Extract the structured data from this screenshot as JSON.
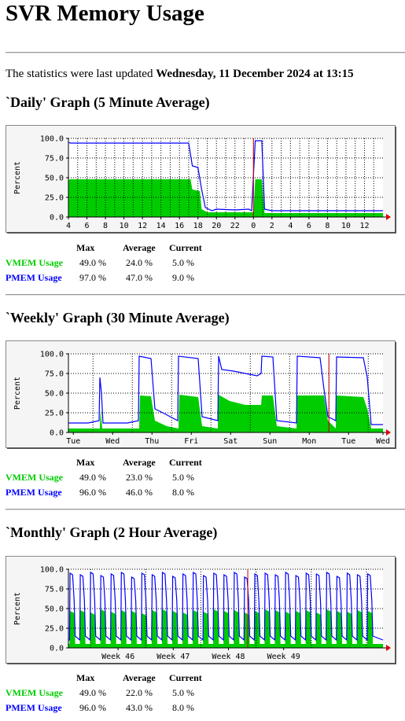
{
  "page": {
    "title": "SVR Memory Usage",
    "updated_prefix": "The statistics were last updated ",
    "updated_value": "Wednesday, 11 December 2024 at 13:15"
  },
  "sections": [
    {
      "heading": "`Daily' Graph (5 Minute Average)",
      "stats": {
        "headers": [
          "Max",
          "Average",
          "Current"
        ],
        "rows": [
          {
            "label": "VMEM Usage",
            "max": "49.0 %",
            "average": "24.0 %",
            "current": "5.0 %"
          },
          {
            "label": "PMEM Usage",
            "max": "97.0 %",
            "average": "47.0 %",
            "current": "9.0 %"
          }
        ]
      }
    },
    {
      "heading": "`Weekly' Graph (30 Minute Average)",
      "stats": {
        "headers": [
          "Max",
          "Average",
          "Current"
        ],
        "rows": [
          {
            "label": "VMEM Usage",
            "max": "49.0 %",
            "average": "23.0 %",
            "current": "5.0 %"
          },
          {
            "label": "PMEM Usage",
            "max": "96.0 %",
            "average": "46.0 %",
            "current": "8.0 %"
          }
        ]
      }
    },
    {
      "heading": "`Monthly' Graph (2 Hour Average)",
      "stats": {
        "headers": [
          "Max",
          "Average",
          "Current"
        ],
        "rows": [
          {
            "label": "VMEM Usage",
            "max": "49.0 %",
            "average": "22.0 %",
            "current": "5.0 %"
          },
          {
            "label": "PMEM Usage",
            "max": "96.0 %",
            "average": "43.0 %",
            "current": "8.0 %"
          }
        ]
      }
    }
  ],
  "chart_data": [
    {
      "type": "area",
      "ylabel": "Percent",
      "ylim": [
        0,
        100
      ],
      "y_ticks": [
        "100.0",
        "75.0",
        "50.0",
        "25.0",
        "0.0"
      ],
      "y_tick_values": [
        100,
        75,
        50,
        25,
        0
      ],
      "x_range": [
        0,
        34
      ],
      "x_ticks": [
        {
          "x": 0,
          "label": "4"
        },
        {
          "x": 2,
          "label": "6"
        },
        {
          "x": 4,
          "label": "8"
        },
        {
          "x": 6,
          "label": "10"
        },
        {
          "x": 8,
          "label": "12"
        },
        {
          "x": 10,
          "label": "14"
        },
        {
          "x": 12,
          "label": "16"
        },
        {
          "x": 14,
          "label": "18"
        },
        {
          "x": 16,
          "label": "20"
        },
        {
          "x": 18,
          "label": "22"
        },
        {
          "x": 20,
          "label": "0"
        },
        {
          "x": 22,
          "label": "2"
        },
        {
          "x": 24,
          "label": "4"
        },
        {
          "x": 26,
          "label": "6"
        },
        {
          "x": 28,
          "label": "8"
        },
        {
          "x": 30,
          "label": "10"
        },
        {
          "x": 32,
          "label": "12"
        }
      ],
      "vertical_grid": [
        0,
        1,
        2,
        3,
        4,
        5,
        6,
        7,
        8,
        9,
        10,
        11,
        12,
        13,
        14,
        15,
        16,
        17,
        18,
        19,
        20,
        21,
        22,
        23,
        24,
        25,
        26,
        27,
        28,
        29,
        30,
        31,
        32,
        33
      ],
      "marker_x": 20,
      "series": [
        {
          "name": "VMEM Usage",
          "color": "#00cc00",
          "style": "area",
          "points": [
            [
              0,
              47
            ],
            [
              0.2,
              48
            ],
            [
              13.2,
              48
            ],
            [
              13.4,
              35
            ],
            [
              14.2,
              33
            ],
            [
              14.4,
              10
            ],
            [
              15,
              6
            ],
            [
              20,
              6
            ],
            [
              20.2,
              48
            ],
            [
              20.9,
              48
            ],
            [
              21.2,
              5
            ],
            [
              34,
              5
            ]
          ]
        },
        {
          "name": "PMEM Usage",
          "color": "#0000ff",
          "style": "line",
          "points": [
            [
              0,
              95
            ],
            [
              0.2,
              94
            ],
            [
              5,
              94
            ],
            [
              13,
              94
            ],
            [
              13.4,
              65
            ],
            [
              14,
              63
            ],
            [
              14.4,
              35
            ],
            [
              14.8,
              12
            ],
            [
              15.5,
              8
            ],
            [
              16,
              10
            ],
            [
              18,
              9
            ],
            [
              19.5,
              10
            ],
            [
              19.8,
              8
            ],
            [
              20.2,
              97
            ],
            [
              20.9,
              97
            ],
            [
              21.2,
              10
            ],
            [
              22,
              8
            ],
            [
              34,
              8
            ]
          ]
        }
      ]
    },
    {
      "type": "area",
      "ylabel": "Percent",
      "ylim": [
        0,
        100
      ],
      "y_ticks": [
        "100.0",
        "75.0",
        "50.0",
        "25.0",
        "0.0"
      ],
      "y_tick_values": [
        100,
        75,
        50,
        25,
        0
      ],
      "x_range": [
        0,
        8
      ],
      "x_ticks": [
        {
          "x": 0.125,
          "label": "Tue"
        },
        {
          "x": 1.125,
          "label": "Wed"
        },
        {
          "x": 2.125,
          "label": "Thu"
        },
        {
          "x": 3.125,
          "label": "Fri"
        },
        {
          "x": 4.125,
          "label": "Sat"
        },
        {
          "x": 5.125,
          "label": "Sun"
        },
        {
          "x": 6.125,
          "label": "Mon"
        },
        {
          "x": 7.125,
          "label": "Tue"
        },
        {
          "x": 8.0,
          "label": "Wed"
        }
      ],
      "vertical_grid": [
        0.625,
        1.625,
        2.625,
        3.625,
        4.625,
        5.625,
        6.625,
        7.625
      ],
      "marker_x": 6.625,
      "series": [
        {
          "name": "VMEM Usage",
          "color": "#00cc00",
          "style": "area",
          "points": [
            [
              0,
              5
            ],
            [
              0.8,
              5
            ],
            [
              0.82,
              30
            ],
            [
              0.86,
              5
            ],
            [
              1.8,
              5
            ],
            [
              1.82,
              47
            ],
            [
              2.1,
              46
            ],
            [
              2.2,
              15
            ],
            [
              2.5,
              8
            ],
            [
              2.8,
              5
            ],
            [
              2.82,
              48
            ],
            [
              3.3,
              45
            ],
            [
              3.4,
              8
            ],
            [
              3.8,
              5
            ],
            [
              3.82,
              48
            ],
            [
              4.1,
              40
            ],
            [
              4.5,
              35
            ],
            [
              4.9,
              35
            ],
            [
              4.92,
              47
            ],
            [
              5.2,
              47
            ],
            [
              5.3,
              8
            ],
            [
              5.8,
              5
            ],
            [
              5.82,
              47
            ],
            [
              6.5,
              47
            ],
            [
              6.6,
              15
            ],
            [
              6.8,
              5
            ],
            [
              6.82,
              47
            ],
            [
              7.5,
              45
            ],
            [
              7.6,
              30
            ],
            [
              7.7,
              5
            ],
            [
              8,
              5
            ]
          ]
        },
        {
          "name": "PMEM Usage",
          "color": "#0000ff",
          "style": "line",
          "points": [
            [
              0,
              12
            ],
            [
              0.5,
              12
            ],
            [
              0.78,
              15
            ],
            [
              0.8,
              70
            ],
            [
              0.84,
              50
            ],
            [
              0.88,
              12
            ],
            [
              1.5,
              12
            ],
            [
              1.78,
              15
            ],
            [
              1.8,
              97
            ],
            [
              2.1,
              94
            ],
            [
              2.2,
              30
            ],
            [
              2.4,
              25
            ],
            [
              2.78,
              15
            ],
            [
              2.8,
              97
            ],
            [
              3.3,
              94
            ],
            [
              3.4,
              20
            ],
            [
              3.8,
              15
            ],
            [
              3.82,
              97
            ],
            [
              3.9,
              80
            ],
            [
              4.2,
              78
            ],
            [
              4.8,
              72
            ],
            [
              4.9,
              75
            ],
            [
              4.92,
              97
            ],
            [
              5.2,
              96
            ],
            [
              5.3,
              15
            ],
            [
              5.8,
              12
            ],
            [
              5.82,
              97
            ],
            [
              6.4,
              95
            ],
            [
              6.5,
              55
            ],
            [
              6.6,
              20
            ],
            [
              6.8,
              15
            ],
            [
              6.82,
              96
            ],
            [
              7.5,
              95
            ],
            [
              7.6,
              70
            ],
            [
              7.7,
              10
            ],
            [
              8,
              10
            ]
          ]
        }
      ]
    },
    {
      "type": "area",
      "ylabel": "Percent",
      "ylim": [
        0,
        100
      ],
      "y_ticks": [
        "100.0",
        "75.0",
        "50.0",
        "25.0",
        "0.0"
      ],
      "y_tick_values": [
        100,
        75,
        50,
        25,
        0
      ],
      "x_range": [
        0,
        5.7
      ],
      "x_ticks": [
        {
          "x": 0.9,
          "label": "Week 46"
        },
        {
          "x": 1.9,
          "label": "Week 47"
        },
        {
          "x": 2.9,
          "label": "Week 48"
        },
        {
          "x": 3.9,
          "label": "Week 49"
        }
      ],
      "vertical_grid": [
        0.4,
        1.4,
        2.4,
        3.4,
        4.4,
        5.4
      ],
      "marker_x": 3.25,
      "cycles": {
        "count": 30,
        "vmem_high": [
          47,
          48,
          45,
          49,
          46,
          48,
          47,
          44,
          48,
          49,
          47,
          45,
          48,
          46,
          49,
          47,
          48,
          45,
          47,
          49,
          48,
          46,
          47,
          48,
          45,
          49,
          47,
          46,
          48,
          47
        ],
        "pmem_high": [
          95,
          93,
          96,
          92,
          94,
          96,
          90,
          95,
          93,
          96,
          91,
          94,
          96,
          92,
          95,
          93,
          96,
          90,
          94,
          95,
          93,
          96,
          92,
          95,
          94,
          96,
          91,
          95,
          93,
          94
        ],
        "vmem_low": 5,
        "pmem_low": 10
      },
      "series": [
        {
          "name": "VMEM Usage",
          "color": "#00cc00",
          "style": "area"
        },
        {
          "name": "PMEM Usage",
          "color": "#0000ff",
          "style": "line"
        }
      ]
    }
  ]
}
